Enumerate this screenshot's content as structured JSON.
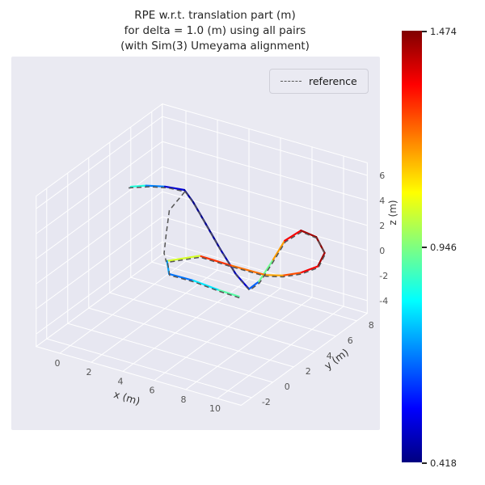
{
  "chart_data": {
    "type": "line",
    "projection": "3d",
    "title": "RPE w.r.t. translation part (m)\nfor delta = 1.0 (m) using all pairs\n(with Sim(3) Umeyama alignment)",
    "title_lines": [
      "RPE w.r.t. translation part (m)",
      "for delta = 1.0 (m) using all pairs",
      "(with Sim(3) Umeyama alignment)"
    ],
    "xlabel": "x (m)",
    "ylabel": "y (m)",
    "zlabel": "z (m)",
    "xticks": [
      0,
      2,
      4,
      6,
      8,
      10
    ],
    "yticks": [
      -2,
      0,
      2,
      4,
      6,
      8
    ],
    "zticks": [
      -4,
      -2,
      0,
      2,
      4,
      6
    ],
    "xlim": [
      -1.5,
      11.5
    ],
    "ylim": [
      -3,
      9
    ],
    "zlim": [
      -5,
      7
    ],
    "grid": true,
    "legend": {
      "position": "upper right",
      "entries": [
        {
          "label": "reference",
          "style": "dashed",
          "color": "#555555"
        }
      ]
    },
    "colorbar": {
      "cmap": "jet",
      "vmin": 0.418,
      "vmax": 1.474,
      "tick_values": [
        1.474,
        0.946,
        0.418
      ],
      "tick_labels": [
        "1.474",
        "0.946",
        "0.418"
      ]
    },
    "series": [
      {
        "name": "estimate_colored_by_rpe",
        "style": "solid",
        "points": [
          [
            -0.9,
            5.1,
            3.0,
            0.88
          ],
          [
            -0.2,
            5.5,
            3.1,
            0.82
          ],
          [
            0.8,
            5.8,
            3.2,
            0.55
          ],
          [
            1.9,
            6.0,
            3.2,
            0.46
          ],
          [
            2.6,
            5.8,
            2.6,
            0.44
          ],
          [
            3.6,
            5.5,
            1.4,
            0.43
          ],
          [
            4.7,
            5.2,
            0.0,
            0.45
          ],
          [
            5.9,
            4.9,
            -1.4,
            0.48
          ],
          [
            6.8,
            4.8,
            -2.2,
            0.52
          ],
          [
            7.1,
            5.3,
            -1.8,
            0.78
          ],
          [
            7.4,
            6.2,
            -0.5,
            1.08
          ],
          [
            7.6,
            7.0,
            0.6,
            1.28
          ],
          [
            8.1,
            7.8,
            1.1,
            1.42
          ],
          [
            8.8,
            8.2,
            0.6,
            1.45
          ],
          [
            9.4,
            8.1,
            -0.4,
            1.47
          ],
          [
            9.3,
            7.6,
            -1.2,
            1.4
          ],
          [
            8.6,
            7.0,
            -1.6,
            1.3
          ],
          [
            7.8,
            6.5,
            -1.8,
            1.22
          ],
          [
            6.9,
            6.2,
            -1.9,
            1.12
          ],
          [
            5.5,
            5.0,
            -0.9,
            1.33
          ],
          [
            4.2,
            4.0,
            0.0,
            1.25
          ],
          [
            2.8,
            3.0,
            -0.3,
            0.82
          ],
          [
            3.0,
            2.9,
            -1.2,
            0.62
          ],
          [
            4.2,
            3.4,
            -1.6,
            0.72
          ],
          [
            5.5,
            3.9,
            -2.2,
            0.86
          ],
          [
            6.5,
            4.3,
            -2.6,
            0.95
          ]
        ]
      },
      {
        "name": "reference",
        "style": "dashed",
        "color": "#555555",
        "segments": [
          [
            [
              -1.0,
              5.05,
              2.9
            ],
            [
              0.0,
              5.55,
              3.05
            ],
            [
              1.0,
              5.82,
              3.15
            ],
            [
              1.95,
              5.97,
              3.1
            ],
            [
              1.55,
              5.1,
              2.0
            ],
            [
              1.95,
              4.2,
              0.8
            ],
            [
              2.35,
              3.4,
              -0.1
            ],
            [
              2.78,
              2.97,
              -0.38
            ]
          ],
          [
            [
              1.97,
              5.95,
              3.15
            ],
            [
              2.67,
              5.75,
              2.55
            ],
            [
              3.67,
              5.45,
              1.35
            ],
            [
              4.77,
              5.15,
              -0.05
            ],
            [
              5.97,
              4.85,
              -1.45
            ],
            [
              6.87,
              4.75,
              -2.25
            ],
            [
              7.17,
              5.25,
              -1.85
            ],
            [
              7.47,
              6.15,
              -0.55
            ],
            [
              7.67,
              6.95,
              0.55
            ],
            [
              8.17,
              7.75,
              1.05
            ],
            [
              8.87,
              8.15,
              0.55
            ],
            [
              9.47,
              8.05,
              -0.45
            ],
            [
              9.37,
              7.55,
              -1.25
            ],
            [
              8.67,
              6.95,
              -1.65
            ],
            [
              7.87,
              6.45,
              -1.85
            ],
            [
              6.97,
              6.15,
              -1.95
            ],
            [
              5.57,
              4.95,
              -0.95
            ],
            [
              4.27,
              3.95,
              -0.05
            ],
            [
              2.87,
              2.95,
              -0.35
            ],
            [
              3.07,
              2.85,
              -1.25
            ],
            [
              4.27,
              3.35,
              -1.65
            ],
            [
              5.57,
              3.85,
              -2.25
            ],
            [
              6.57,
              4.25,
              -2.65
            ]
          ]
        ]
      }
    ]
  }
}
